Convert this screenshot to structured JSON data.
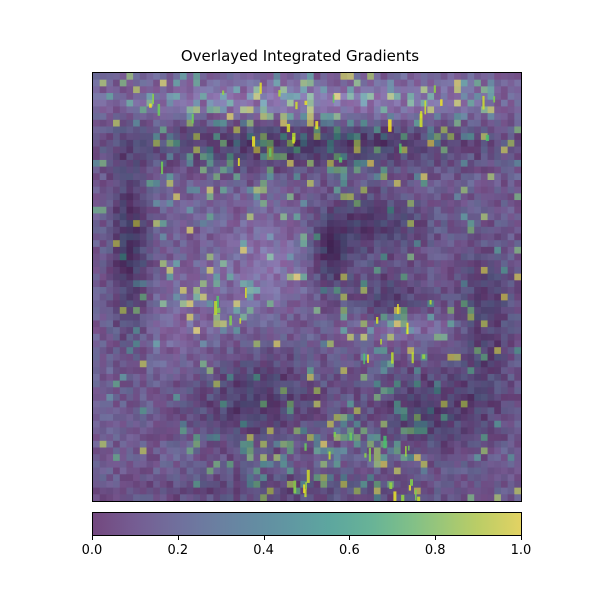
{
  "chart_data": {
    "type": "heatmap",
    "title": "Overlayed Integrated Gradients",
    "xlabel": "",
    "ylabel": "",
    "axes_ticks_visible": false,
    "colormap": "viridis",
    "overlay_alpha": 0.6,
    "colorbar": {
      "orientation": "horizontal",
      "placement": "bottom",
      "range": [
        0.0,
        1.0
      ],
      "ticks": [
        0.0,
        0.2,
        0.4,
        0.6,
        0.8,
        1.0
      ],
      "tick_labels": [
        "0.0",
        "0.2",
        "0.4",
        "0.6",
        "0.8",
        "1.0"
      ]
    },
    "colors": {
      "viridis_low": "#440154",
      "viridis_mid": "#21918c",
      "viridis_high": "#fde725",
      "background_gray": "#b9b3c0"
    }
  }
}
